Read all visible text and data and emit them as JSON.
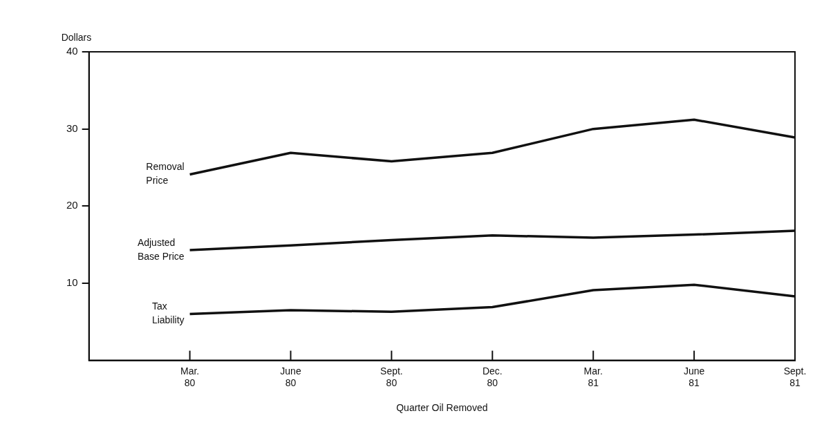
{
  "chart_data": {
    "type": "line",
    "ylabel": "Dollars",
    "xlabel": "Quarter Oil Removed",
    "categories": [
      null,
      "Mar. 80",
      "June 80",
      "Sept. 80",
      "Dec. 80",
      "Mar. 81",
      "June 81",
      "Sept. 81"
    ],
    "series": [
      {
        "name": "Removal Price",
        "color": "#111111",
        "values": [
          null,
          24.1,
          26.9,
          25.8,
          26.9,
          30.0,
          31.2,
          28.9
        ]
      },
      {
        "name": "Adjusted Base Price",
        "color": "#111111",
        "values": [
          null,
          14.3,
          14.9,
          15.6,
          16.2,
          15.9,
          16.3,
          16.8
        ]
      },
      {
        "name": "Tax Liability",
        "color": "#111111",
        "values": [
          null,
          6.0,
          6.5,
          6.3,
          6.9,
          9.1,
          9.8,
          8.3
        ]
      }
    ],
    "ylim": [
      0,
      40
    ],
    "yticks": [
      10,
      20,
      30,
      40
    ],
    "grid": false,
    "legend": false,
    "marker": "none",
    "line_style": "solid"
  }
}
